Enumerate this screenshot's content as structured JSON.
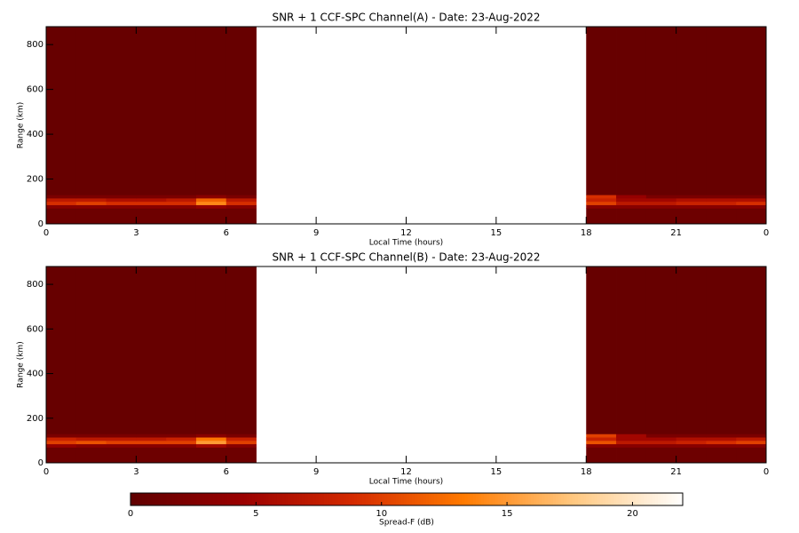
{
  "chart_data": [
    {
      "type": "heatmap",
      "title": "SNR + 1 CCF-SPC Channel(A) - Date: 23-Aug-2022",
      "x_label": "Local Time (hours)",
      "y_label": "Range (km)",
      "xlim": [
        0,
        24
      ],
      "xticks": [
        0,
        3,
        6,
        9,
        12,
        15,
        18,
        21,
        {
          "value": 24,
          "label": "0"
        }
      ],
      "ylim": [
        0,
        880
      ],
      "yticks": [
        0,
        200,
        400,
        600,
        800
      ],
      "x_bins": [
        0,
        1,
        2,
        3,
        4,
        5,
        6,
        7,
        8,
        9,
        10,
        11,
        12,
        13,
        14,
        15,
        16,
        17,
        18,
        19,
        20,
        21,
        22,
        23,
        24
      ],
      "y_bins": [
        0,
        70,
        85,
        100,
        115,
        130,
        880
      ],
      "z": [
        [
          1,
          1,
          1,
          1,
          1,
          1,
          1,
          null,
          null,
          null,
          null,
          null,
          null,
          null,
          null,
          null,
          null,
          null,
          1,
          1,
          1,
          1,
          1,
          1
        ],
        [
          3,
          3,
          3,
          3,
          3,
          4,
          3,
          null,
          null,
          null,
          null,
          null,
          null,
          null,
          null,
          null,
          null,
          null,
          3,
          3,
          3,
          3,
          3,
          3
        ],
        [
          9,
          10,
          9,
          9,
          9,
          14,
          9,
          null,
          null,
          null,
          null,
          null,
          null,
          null,
          null,
          null,
          null,
          null,
          10,
          7,
          7,
          8,
          8,
          9
        ],
        [
          7,
          7,
          6,
          6,
          7,
          12,
          7,
          null,
          null,
          null,
          null,
          null,
          null,
          null,
          null,
          null,
          null,
          null,
          8,
          5,
          5,
          6,
          6,
          6
        ],
        [
          2,
          2,
          2,
          2,
          2,
          3,
          2,
          null,
          null,
          null,
          null,
          null,
          null,
          null,
          null,
          null,
          null,
          null,
          9,
          4,
          2,
          2,
          2,
          2
        ],
        [
          0.5,
          0.5,
          0.5,
          0.5,
          0.5,
          0.5,
          0.5,
          null,
          null,
          null,
          null,
          null,
          null,
          null,
          null,
          null,
          null,
          null,
          0.5,
          0.5,
          0.5,
          0.5,
          0.5,
          0.5
        ]
      ]
    },
    {
      "type": "heatmap",
      "title": "SNR + 1 CCF-SPC Channel(B) - Date: 23-Aug-2022",
      "x_label": "Local Time (hours)",
      "y_label": "Range (km)",
      "xlim": [
        0,
        24
      ],
      "xticks": [
        0,
        3,
        6,
        9,
        12,
        15,
        18,
        21,
        {
          "value": 24,
          "label": "0"
        }
      ],
      "ylim": [
        0,
        880
      ],
      "yticks": [
        0,
        200,
        400,
        600,
        800
      ],
      "x_bins": [
        0,
        1,
        2,
        3,
        4,
        5,
        6,
        7,
        8,
        9,
        10,
        11,
        12,
        13,
        14,
        15,
        16,
        17,
        18,
        19,
        20,
        21,
        22,
        23,
        24
      ],
      "y_bins": [
        0,
        70,
        85,
        100,
        115,
        130,
        880
      ],
      "z": [
        [
          1,
          1,
          1,
          1,
          1,
          1,
          1,
          null,
          null,
          null,
          null,
          null,
          null,
          null,
          null,
          null,
          null,
          null,
          1,
          1,
          1,
          1,
          1,
          1
        ],
        [
          4,
          3,
          3,
          3,
          3,
          5,
          3,
          null,
          null,
          null,
          null,
          null,
          null,
          null,
          null,
          null,
          null,
          null,
          3,
          3,
          3,
          3,
          3,
          3
        ],
        [
          10,
          11,
          10,
          10,
          10,
          15,
          10,
          null,
          null,
          null,
          null,
          null,
          null,
          null,
          null,
          null,
          null,
          null,
          11,
          7,
          7,
          8,
          9,
          10
        ],
        [
          8,
          7,
          7,
          7,
          8,
          13,
          8,
          null,
          null,
          null,
          null,
          null,
          null,
          null,
          null,
          null,
          null,
          null,
          8,
          5,
          5,
          6,
          6,
          7
        ],
        [
          2,
          2,
          2,
          2,
          2,
          3,
          2,
          null,
          null,
          null,
          null,
          null,
          null,
          null,
          null,
          null,
          null,
          null,
          10,
          5,
          2,
          2,
          2,
          2
        ],
        [
          0.5,
          0.5,
          0.5,
          0.5,
          0.5,
          0.5,
          0.5,
          null,
          null,
          null,
          null,
          null,
          null,
          null,
          null,
          null,
          null,
          null,
          0.5,
          0.5,
          0.5,
          0.5,
          0.5,
          0.5
        ]
      ]
    }
  ],
  "colorbar": {
    "label": "Spread-F (dB)",
    "clim": [
      0,
      22
    ],
    "ticks": [
      0,
      5,
      10,
      15,
      20
    ],
    "colors": [
      "#600000",
      "#9a0000",
      "#d42a00",
      "#ff7a00",
      "#ffc880",
      "#ffffff"
    ]
  }
}
